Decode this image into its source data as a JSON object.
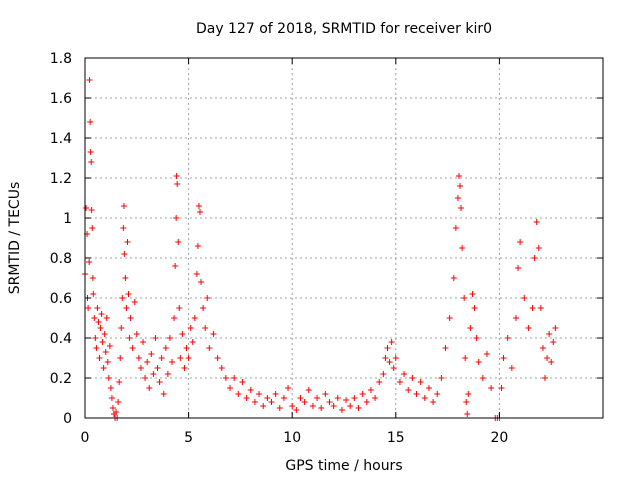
{
  "chart_data": {
    "type": "scatter",
    "title": "Day 127 of 2018, SRMTID for receiver kir0",
    "xlabel": "GPS time / hours",
    "ylabel": "SRMTID / TECUs",
    "xlim": [
      0,
      25
    ],
    "ylim": [
      0,
      1.8
    ],
    "x_ticks": [
      0,
      5,
      10,
      15,
      20
    ],
    "x_tick_labels": [
      "0",
      "5",
      "10",
      "15",
      "20"
    ],
    "y_ticks": [
      0,
      0.2,
      0.4,
      0.6,
      0.8,
      1.0,
      1.2,
      1.4,
      1.6,
      1.8
    ],
    "y_tick_labels": [
      "0",
      "0.2",
      "0.4",
      "0.6",
      "0.8",
      "1",
      "1.2",
      "1.4",
      "1.6",
      "1.8"
    ],
    "grid": true,
    "marker": "+",
    "color": "#ff0000",
    "series": [
      {
        "name": "SRMTID",
        "points": [
          [
            0.0,
            0.72
          ],
          [
            0.05,
            1.05
          ],
          [
            0.1,
            0.92
          ],
          [
            0.12,
            0.6
          ],
          [
            0.15,
            0.55
          ],
          [
            0.2,
            0.78
          ],
          [
            0.22,
            1.69
          ],
          [
            0.25,
            1.48
          ],
          [
            0.27,
            1.33
          ],
          [
            0.3,
            1.28
          ],
          [
            0.32,
            1.04
          ],
          [
            0.35,
            0.95
          ],
          [
            0.38,
            0.7
          ],
          [
            0.4,
            0.62
          ],
          [
            0.45,
            0.5
          ],
          [
            0.5,
            0.4
          ],
          [
            0.55,
            0.35
          ],
          [
            0.6,
            0.55
          ],
          [
            0.65,
            0.48
          ],
          [
            0.7,
            0.3
          ],
          [
            0.75,
            0.45
          ],
          [
            0.8,
            0.52
          ],
          [
            0.85,
            0.38
          ],
          [
            0.9,
            0.25
          ],
          [
            0.95,
            0.42
          ],
          [
            1.0,
            0.33
          ],
          [
            1.05,
            0.5
          ],
          [
            1.1,
            0.28
          ],
          [
            1.15,
            0.2
          ],
          [
            1.2,
            0.36
          ],
          [
            1.25,
            0.15
          ],
          [
            1.3,
            0.1
          ],
          [
            1.35,
            0.05
          ],
          [
            1.4,
            0.02
          ],
          [
            1.45,
            0.0
          ],
          [
            1.5,
            0.03
          ],
          [
            1.55,
            0.0
          ],
          [
            1.6,
            0.08
          ],
          [
            1.65,
            0.18
          ],
          [
            1.7,
            0.3
          ],
          [
            1.75,
            0.45
          ],
          [
            1.8,
            0.6
          ],
          [
            1.85,
            0.95
          ],
          [
            1.88,
            1.06
          ],
          [
            1.9,
            0.82
          ],
          [
            1.95,
            0.7
          ],
          [
            2.0,
            0.55
          ],
          [
            2.05,
            0.88
          ],
          [
            2.1,
            0.62
          ],
          [
            2.15,
            0.4
          ],
          [
            2.2,
            0.5
          ],
          [
            2.3,
            0.35
          ],
          [
            2.4,
            0.58
          ],
          [
            2.5,
            0.42
          ],
          [
            2.6,
            0.3
          ],
          [
            2.7,
            0.25
          ],
          [
            2.8,
            0.38
          ],
          [
            2.9,
            0.2
          ],
          [
            3.0,
            0.28
          ],
          [
            3.1,
            0.15
          ],
          [
            3.2,
            0.32
          ],
          [
            3.3,
            0.22
          ],
          [
            3.4,
            0.4
          ],
          [
            3.5,
            0.25
          ],
          [
            3.6,
            0.18
          ],
          [
            3.7,
            0.3
          ],
          [
            3.8,
            0.12
          ],
          [
            3.9,
            0.35
          ],
          [
            4.0,
            0.22
          ],
          [
            4.1,
            0.4
          ],
          [
            4.2,
            0.28
          ],
          [
            4.3,
            0.5
          ],
          [
            4.35,
            0.76
          ],
          [
            4.4,
            1.0
          ],
          [
            4.42,
            1.21
          ],
          [
            4.45,
            1.17
          ],
          [
            4.5,
            0.88
          ],
          [
            4.55,
            0.55
          ],
          [
            4.6,
            0.3
          ],
          [
            4.7,
            0.42
          ],
          [
            4.8,
            0.25
          ],
          [
            4.9,
            0.35
          ],
          [
            5.0,
            0.3
          ],
          [
            5.1,
            0.45
          ],
          [
            5.2,
            0.38
          ],
          [
            5.3,
            0.5
          ],
          [
            5.4,
            0.72
          ],
          [
            5.45,
            0.86
          ],
          [
            5.5,
            1.06
          ],
          [
            5.55,
            1.03
          ],
          [
            5.6,
            0.68
          ],
          [
            5.7,
            0.55
          ],
          [
            5.8,
            0.45
          ],
          [
            5.9,
            0.6
          ],
          [
            6.0,
            0.35
          ],
          [
            6.2,
            0.42
          ],
          [
            6.4,
            0.3
          ],
          [
            6.6,
            0.25
          ],
          [
            6.8,
            0.2
          ],
          [
            7.0,
            0.15
          ],
          [
            7.2,
            0.2
          ],
          [
            7.4,
            0.12
          ],
          [
            7.6,
            0.18
          ],
          [
            7.8,
            0.1
          ],
          [
            8.0,
            0.14
          ],
          [
            8.2,
            0.08
          ],
          [
            8.4,
            0.12
          ],
          [
            8.6,
            0.06
          ],
          [
            8.8,
            0.1
          ],
          [
            9.0,
            0.08
          ],
          [
            9.2,
            0.12
          ],
          [
            9.4,
            0.05
          ],
          [
            9.6,
            0.1
          ],
          [
            9.8,
            0.15
          ],
          [
            10.0,
            0.06
          ],
          [
            10.2,
            0.04
          ],
          [
            10.4,
            0.1
          ],
          [
            10.6,
            0.08
          ],
          [
            10.8,
            0.14
          ],
          [
            11.0,
            0.06
          ],
          [
            11.2,
            0.1
          ],
          [
            11.4,
            0.05
          ],
          [
            11.6,
            0.12
          ],
          [
            11.8,
            0.08
          ],
          [
            12.0,
            0.06
          ],
          [
            12.2,
            0.1
          ],
          [
            12.4,
            0.04
          ],
          [
            12.6,
            0.09
          ],
          [
            12.8,
            0.06
          ],
          [
            13.0,
            0.1
          ],
          [
            13.2,
            0.05
          ],
          [
            13.4,
            0.12
          ],
          [
            13.6,
            0.08
          ],
          [
            13.8,
            0.14
          ],
          [
            14.0,
            0.1
          ],
          [
            14.2,
            0.18
          ],
          [
            14.4,
            0.22
          ],
          [
            14.5,
            0.3
          ],
          [
            14.6,
            0.35
          ],
          [
            14.7,
            0.28
          ],
          [
            14.8,
            0.38
          ],
          [
            14.9,
            0.25
          ],
          [
            15.0,
            0.3
          ],
          [
            15.2,
            0.18
          ],
          [
            15.4,
            0.22
          ],
          [
            15.6,
            0.14
          ],
          [
            15.8,
            0.2
          ],
          [
            16.0,
            0.12
          ],
          [
            16.2,
            0.18
          ],
          [
            16.4,
            0.1
          ],
          [
            16.6,
            0.15
          ],
          [
            16.8,
            0.08
          ],
          [
            17.0,
            0.12
          ],
          [
            17.2,
            0.2
          ],
          [
            17.4,
            0.35
          ],
          [
            17.6,
            0.5
          ],
          [
            17.8,
            0.7
          ],
          [
            17.9,
            0.95
          ],
          [
            18.0,
            1.1
          ],
          [
            18.05,
            1.21
          ],
          [
            18.1,
            1.16
          ],
          [
            18.15,
            1.05
          ],
          [
            18.2,
            0.85
          ],
          [
            18.3,
            0.6
          ],
          [
            18.35,
            0.3
          ],
          [
            18.4,
            0.08
          ],
          [
            18.45,
            0.02
          ],
          [
            18.5,
            0.12
          ],
          [
            18.6,
            0.45
          ],
          [
            18.7,
            0.62
          ],
          [
            18.8,
            0.55
          ],
          [
            18.9,
            0.4
          ],
          [
            19.0,
            0.28
          ],
          [
            19.2,
            0.2
          ],
          [
            19.4,
            0.32
          ],
          [
            19.6,
            0.15
          ],
          [
            19.8,
            0.0
          ],
          [
            19.9,
            0.0
          ],
          [
            20.0,
            0.0
          ],
          [
            20.1,
            0.15
          ],
          [
            20.2,
            0.3
          ],
          [
            20.4,
            0.4
          ],
          [
            20.6,
            0.25
          ],
          [
            20.8,
            0.5
          ],
          [
            20.9,
            0.75
          ],
          [
            21.0,
            0.88
          ],
          [
            21.2,
            0.6
          ],
          [
            21.4,
            0.45
          ],
          [
            21.6,
            0.55
          ],
          [
            21.7,
            0.8
          ],
          [
            21.8,
            0.98
          ],
          [
            21.9,
            0.85
          ],
          [
            22.0,
            0.55
          ],
          [
            22.1,
            0.35
          ],
          [
            22.2,
            0.2
          ],
          [
            22.3,
            0.3
          ],
          [
            22.4,
            0.42
          ],
          [
            22.5,
            0.28
          ],
          [
            22.6,
            0.38
          ],
          [
            22.7,
            0.45
          ]
        ]
      }
    ]
  }
}
